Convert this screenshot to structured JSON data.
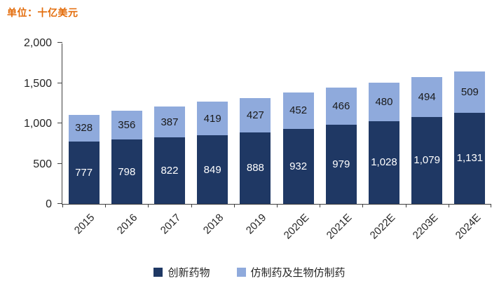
{
  "unit_label": "单位：十亿美元",
  "chart_data": {
    "type": "bar",
    "stacked": true,
    "title": "",
    "unit_label": "单位：十亿美元",
    "xlabel": "",
    "ylabel": "",
    "grid": false,
    "legend_position": "bottom",
    "ylim": [
      0,
      2000
    ],
    "yticks": [
      "0",
      "500",
      "1,000",
      "1,500",
      "2,000"
    ],
    "categories": [
      "2015",
      "2016",
      "2017",
      "2018",
      "2019",
      "2020E",
      "2021E",
      "2022E",
      "2203E",
      "2024E"
    ],
    "series": [
      {
        "name": "创新药物",
        "color": "#1F3864",
        "values": [
          777,
          798,
          822,
          849,
          888,
          932,
          979,
          1028,
          1079,
          1131
        ],
        "labels": [
          "777",
          "798",
          "822",
          "849",
          "888",
          "932",
          "979",
          "1,028",
          "1,079",
          "1,131"
        ]
      },
      {
        "name": "仿制药及生物仿制药",
        "color": "#8FAADC",
        "values": [
          328,
          356,
          387,
          419,
          427,
          452,
          466,
          480,
          494,
          509
        ],
        "labels": [
          "328",
          "356",
          "387",
          "419",
          "427",
          "452",
          "466",
          "480",
          "494",
          "509"
        ]
      }
    ]
  }
}
